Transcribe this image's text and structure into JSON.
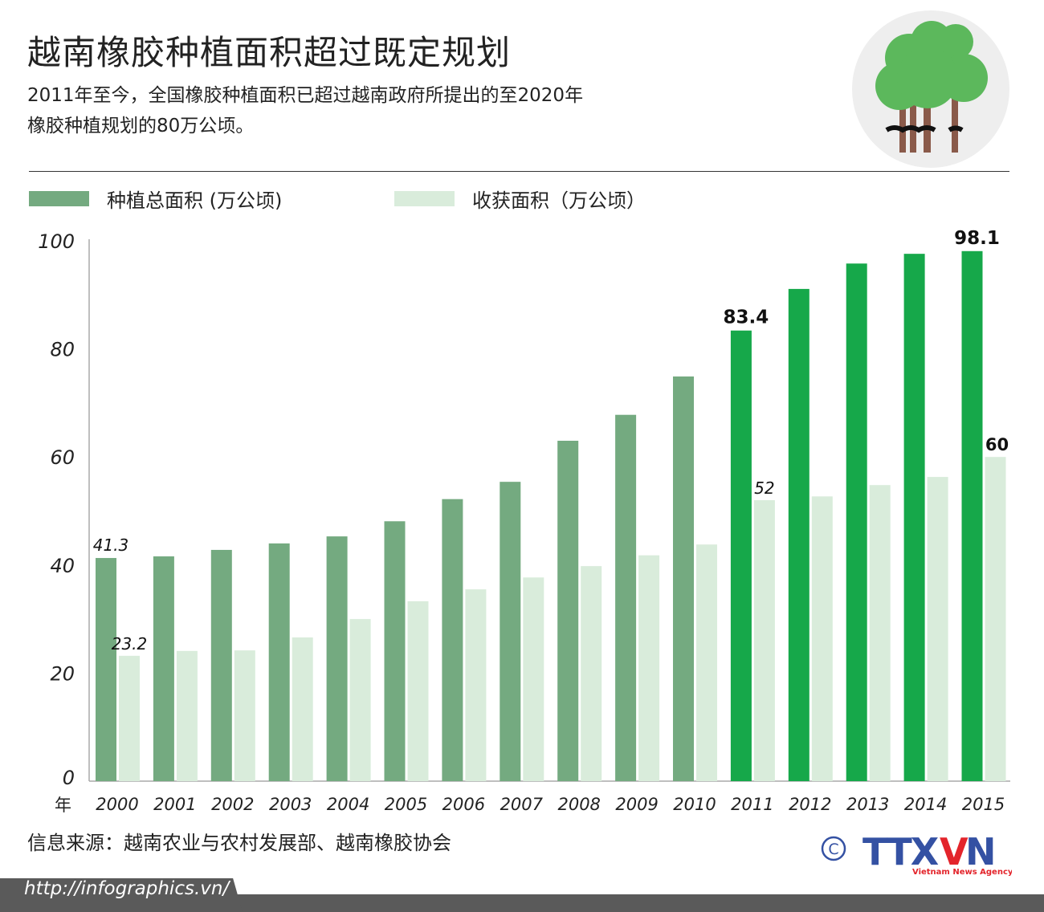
{
  "header": {
    "title": "越南橡胶种植面积超过既定规划",
    "subtitle_line1": "2011年至今，全国橡胶种植面积已超过越南政府所提出的至2020年",
    "subtitle_line2": "橡胶种植规划的80万公顷。"
  },
  "footer": {
    "source": "信息来源：越南农业与农村发展部、越南橡胶协会",
    "url": "http://infographics.vn/",
    "logo_text": "TTXVN",
    "logo_tagline": "Vietnam News Agency",
    "copyright_symbol": "©"
  },
  "colors": {
    "planted": "#74aa80",
    "planted_highlight": "#16a84a",
    "harvested": "#d9ecdb",
    "logo_blue": "#3451a3",
    "logo_red": "#e3242b",
    "footer_bar": "#5a5a5a"
  },
  "chart_data": {
    "type": "bar",
    "title": "",
    "xlabel": "年",
    "ylabel": "",
    "ylim": [
      0,
      100
    ],
    "yticks": [
      0,
      20,
      40,
      60,
      80,
      100
    ],
    "grid": false,
    "legend_position": "top-left",
    "categories": [
      "2000",
      "2001",
      "2002",
      "2003",
      "2004",
      "2005",
      "2006",
      "2007",
      "2008",
      "2009",
      "2010",
      "2011",
      "2012",
      "2013",
      "2014",
      "2015"
    ],
    "highlight_categories": [
      "2011",
      "2012",
      "2013",
      "2014",
      "2015"
    ],
    "series": [
      {
        "name": "种植总面积 (万公顷)",
        "values": [
          41.3,
          41.6,
          42.8,
          44.0,
          45.3,
          48.1,
          52.2,
          55.4,
          63.0,
          67.8,
          74.9,
          83.4,
          91.1,
          95.8,
          97.6,
          98.1
        ],
        "data_labels": {
          "2000": "41.3",
          "2011": "83.4",
          "2015": "98.1"
        }
      },
      {
        "name": "收获面积（万公顷）",
        "values": [
          23.2,
          24.1,
          24.2,
          26.6,
          30.0,
          33.3,
          35.5,
          37.7,
          39.8,
          41.8,
          43.8,
          52,
          52.7,
          54.8,
          56.3,
          60
        ],
        "data_labels": {
          "2000": "23.2",
          "2011": "52",
          "2015": "60"
        }
      }
    ]
  }
}
